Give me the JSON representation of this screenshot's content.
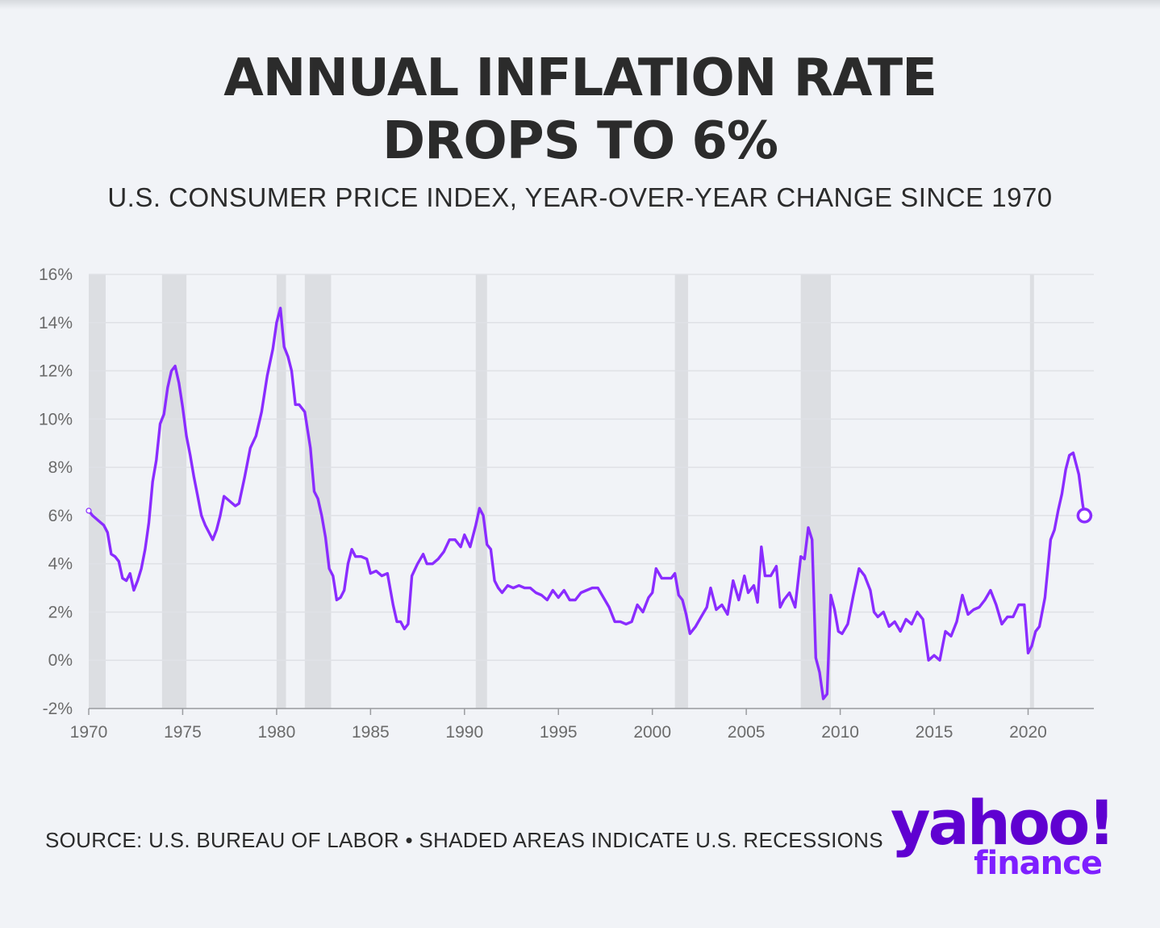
{
  "title_line1": "ANNUAL INFLATION RATE",
  "title_line2": "DROPS TO 6%",
  "subtitle": "U.S. CONSUMER PRICE INDEX, YEAR-OVER-YEAR CHANGE SINCE 1970",
  "source": "SOURCE: U.S. BUREAU OF LABOR • SHADED AREAS INDICATE U.S. RECESSIONS",
  "logo": {
    "main": "yahoo!",
    "sub": "finance"
  },
  "colors": {
    "line": "#8a2cff",
    "recession": "#dcdee2",
    "grid": "#dfe1e6",
    "text": "#2b2b2b",
    "tick": "#6b6b6b"
  },
  "chart_data": {
    "type": "line",
    "title": "ANNUAL INFLATION RATE DROPS TO 6%",
    "subtitle": "U.S. CONSUMER PRICE INDEX, YEAR-OVER-YEAR CHANGE SINCE 1970",
    "xlabel": "",
    "ylabel": "",
    "xlim": [
      1970,
      2023.5
    ],
    "ylim": [
      -2,
      16
    ],
    "x_ticks": [
      1970,
      1975,
      1980,
      1985,
      1990,
      1995,
      2000,
      2005,
      2010,
      2015,
      2020
    ],
    "y_ticks": [
      -2,
      0,
      2,
      4,
      6,
      8,
      10,
      12,
      14,
      16
    ],
    "y_tick_labels": [
      "-2%",
      "0%",
      "2%",
      "4%",
      "6%",
      "8%",
      "10%",
      "12%",
      "14%",
      "16%"
    ],
    "grid": true,
    "recessions": [
      [
        1970.0,
        1970.9
      ],
      [
        1973.9,
        1975.2
      ],
      [
        1980.0,
        1980.5
      ],
      [
        1981.5,
        1982.9
      ],
      [
        1990.6,
        1991.2
      ],
      [
        2001.2,
        2001.9
      ],
      [
        2007.9,
        2009.5
      ],
      [
        2020.1,
        2020.3
      ]
    ],
    "end_marker": {
      "x": 2023.0,
      "y": 6.0
    },
    "series": [
      {
        "x": [
          1970.0,
          1970.2,
          1970.5,
          1970.8,
          1971.0,
          1971.2,
          1971.4,
          1971.6,
          1971.8,
          1972.0,
          1972.2,
          1972.4,
          1972.6,
          1972.8,
          1973.0,
          1973.2,
          1973.4,
          1973.6,
          1973.8,
          1974.0,
          1974.2,
          1974.4,
          1974.6,
          1974.8,
          1975.0,
          1975.2,
          1975.4,
          1975.6,
          1975.8,
          1976.0,
          1976.2,
          1976.4,
          1976.6,
          1976.8,
          1977.0,
          1977.2,
          1977.5,
          1977.8,
          1978.0,
          1978.3,
          1978.6,
          1978.9,
          1979.2,
          1979.5,
          1979.8,
          1980.0,
          1980.2,
          1980.4,
          1980.6,
          1980.8,
          1981.0,
          1981.2,
          1981.5,
          1981.8,
          1982.0,
          1982.2,
          1982.4,
          1982.6,
          1982.8,
          1983.0,
          1983.2,
          1983.4,
          1983.6,
          1983.8,
          1984.0,
          1984.2,
          1984.5,
          1984.8,
          1985.0,
          1985.3,
          1985.6,
          1985.9,
          1986.2,
          1986.4,
          1986.6,
          1986.8,
          1987.0,
          1987.2,
          1987.5,
          1987.8,
          1988.0,
          1988.3,
          1988.6,
          1988.9,
          1989.2,
          1989.5,
          1989.8,
          1990.0,
          1990.3,
          1990.6,
          1990.8,
          1991.0,
          1991.2,
          1991.4,
          1991.6,
          1991.8,
          1992.0,
          1992.3,
          1992.6,
          1992.9,
          1993.2,
          1993.5,
          1993.8,
          1994.1,
          1994.4,
          1994.7,
          1995.0,
          1995.3,
          1995.6,
          1995.9,
          1996.2,
          1996.5,
          1996.8,
          1997.1,
          1997.4,
          1997.7,
          1998.0,
          1998.3,
          1998.6,
          1998.9,
          1999.2,
          1999.5,
          1999.8,
          2000.0,
          2000.2,
          2000.5,
          2000.8,
          2001.0,
          2001.2,
          2001.4,
          2001.6,
          2001.8,
          2002.0,
          2002.3,
          2002.6,
          2002.9,
          2003.1,
          2003.4,
          2003.7,
          2004.0,
          2004.3,
          2004.6,
          2004.9,
          2005.1,
          2005.4,
          2005.6,
          2005.8,
          2006.0,
          2006.3,
          2006.6,
          2006.8,
          2007.0,
          2007.3,
          2007.6,
          2007.9,
          2008.1,
          2008.3,
          2008.5,
          2008.7,
          2008.9,
          2009.1,
          2009.3,
          2009.5,
          2009.7,
          2009.9,
          2010.1,
          2010.4,
          2010.7,
          2011.0,
          2011.3,
          2011.6,
          2011.8,
          2012.0,
          2012.3,
          2012.6,
          2012.9,
          2013.2,
          2013.5,
          2013.8,
          2014.1,
          2014.4,
          2014.7,
          2015.0,
          2015.3,
          2015.6,
          2015.9,
          2016.2,
          2016.5,
          2016.8,
          2017.1,
          2017.4,
          2017.7,
          2018.0,
          2018.3,
          2018.6,
          2018.9,
          2019.2,
          2019.5,
          2019.8,
          2020.0,
          2020.2,
          2020.4,
          2020.6,
          2020.9,
          2021.2,
          2021.4,
          2021.6,
          2021.8,
          2022.0,
          2022.2,
          2022.4,
          2022.5,
          2022.7,
          2022.9,
          2023.0
        ],
        "values": [
          6.2,
          6.0,
          5.8,
          5.6,
          5.3,
          4.4,
          4.3,
          4.1,
          3.4,
          3.3,
          3.6,
          2.9,
          3.3,
          3.8,
          4.6,
          5.7,
          7.4,
          8.3,
          9.8,
          10.2,
          11.3,
          12.0,
          12.2,
          11.5,
          10.5,
          9.3,
          8.5,
          7.6,
          6.8,
          6.0,
          5.6,
          5.3,
          5.0,
          5.4,
          6.0,
          6.8,
          6.6,
          6.4,
          6.5,
          7.6,
          8.8,
          9.3,
          10.3,
          11.8,
          12.9,
          14.0,
          14.6,
          13.0,
          12.6,
          12.0,
          10.6,
          10.6,
          10.3,
          8.8,
          7.0,
          6.7,
          6.0,
          5.1,
          3.8,
          3.5,
          2.5,
          2.6,
          2.9,
          4.0,
          4.6,
          4.3,
          4.3,
          4.2,
          3.6,
          3.7,
          3.5,
          3.6,
          2.3,
          1.6,
          1.6,
          1.3,
          1.5,
          3.5,
          4.0,
          4.4,
          4.0,
          4.0,
          4.2,
          4.5,
          5.0,
          5.0,
          4.7,
          5.2,
          4.7,
          5.6,
          6.3,
          6.0,
          4.8,
          4.6,
          3.3,
          3.0,
          2.8,
          3.1,
          3.0,
          3.1,
          3.0,
          3.0,
          2.8,
          2.7,
          2.5,
          2.9,
          2.6,
          2.9,
          2.5,
          2.5,
          2.8,
          2.9,
          3.0,
          3.0,
          2.6,
          2.2,
          1.6,
          1.6,
          1.5,
          1.6,
          2.3,
          2.0,
          2.6,
          2.8,
          3.8,
          3.4,
          3.4,
          3.4,
          3.6,
          2.7,
          2.5,
          1.9,
          1.1,
          1.4,
          1.8,
          2.2,
          3.0,
          2.1,
          2.3,
          1.9,
          3.3,
          2.5,
          3.5,
          2.8,
          3.1,
          2.4,
          4.7,
          3.5,
          3.5,
          3.9,
          2.2,
          2.5,
          2.8,
          2.2,
          4.3,
          4.2,
          5.5,
          5.0,
          0.1,
          -0.5,
          -1.6,
          -1.4,
          2.7,
          2.1,
          1.2,
          1.1,
          1.5,
          2.7,
          3.8,
          3.5,
          2.9,
          2.0,
          1.8,
          2.0,
          1.4,
          1.6,
          1.2,
          1.7,
          1.5,
          2.0,
          1.7,
          0.0,
          0.2,
          0.0,
          1.2,
          1.0,
          1.6,
          2.7,
          1.9,
          2.1,
          2.2,
          2.5,
          2.9,
          2.3,
          1.5,
          1.8,
          1.8,
          2.3,
          2.3,
          0.3,
          0.6,
          1.2,
          1.4,
          2.6,
          5.0,
          5.4,
          6.2,
          6.9,
          7.9,
          8.5,
          8.6,
          8.3,
          7.7,
          6.5,
          6.0
        ]
      }
    ]
  }
}
